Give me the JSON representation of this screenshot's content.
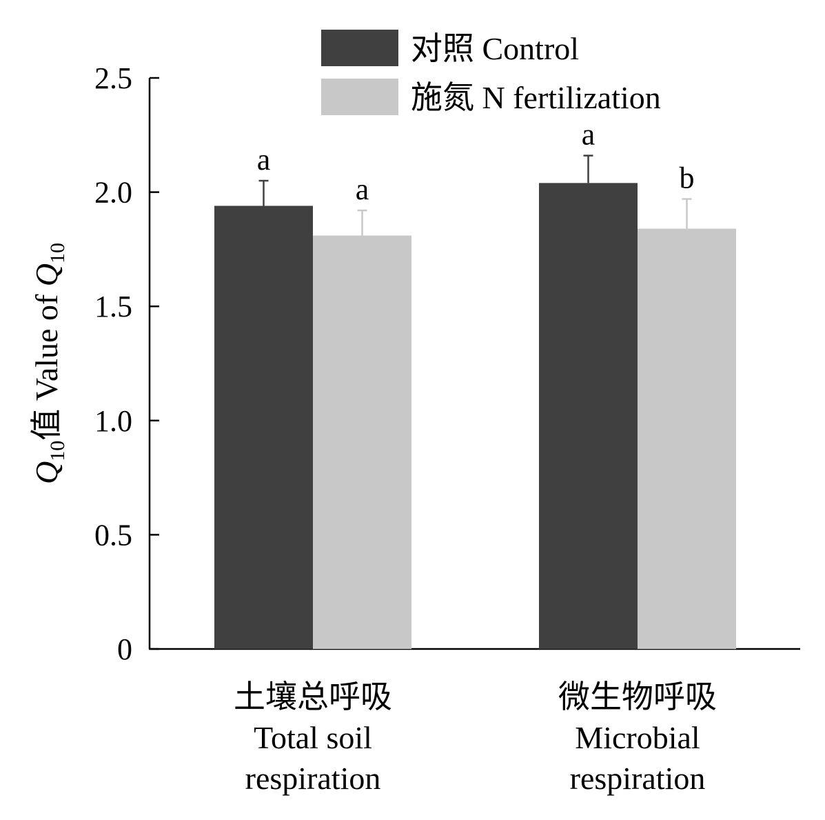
{
  "chart_data": {
    "type": "bar",
    "title": "",
    "ylabel": {
      "q_symbol": "Q",
      "q_subscript": "10",
      "cn": "值",
      "en": " Value of ",
      "q2_symbol": "Q",
      "q2_subscript": "10"
    },
    "ylim": [
      0,
      2.5
    ],
    "yticks": [
      {
        "value": 0,
        "label": "0"
      },
      {
        "value": 0.5,
        "label": "0.5"
      },
      {
        "value": 1.0,
        "label": "1.0"
      },
      {
        "value": 1.5,
        "label": "1.5"
      },
      {
        "value": 2.0,
        "label": "2.0"
      },
      {
        "value": 2.5,
        "label": "2.5"
      }
    ],
    "categories": [
      {
        "lines": [
          "土壤总呼吸",
          "Total soil",
          "respiration"
        ]
      },
      {
        "lines": [
          "微生物呼吸",
          "Microbial",
          "respiration"
        ]
      }
    ],
    "series": [
      {
        "name": "对照 Control",
        "color": "#404040",
        "values": [
          1.94,
          2.04
        ],
        "errors": [
          0.11,
          0.12
        ],
        "letters": [
          "a",
          "a"
        ]
      },
      {
        "name": "施氮 N fertilization",
        "color": "#c8c8c8",
        "values": [
          1.81,
          1.84
        ],
        "errors": [
          0.11,
          0.13
        ],
        "letters": [
          "a",
          "b"
        ]
      }
    ],
    "legend_position": "top-center",
    "grid": false
  }
}
